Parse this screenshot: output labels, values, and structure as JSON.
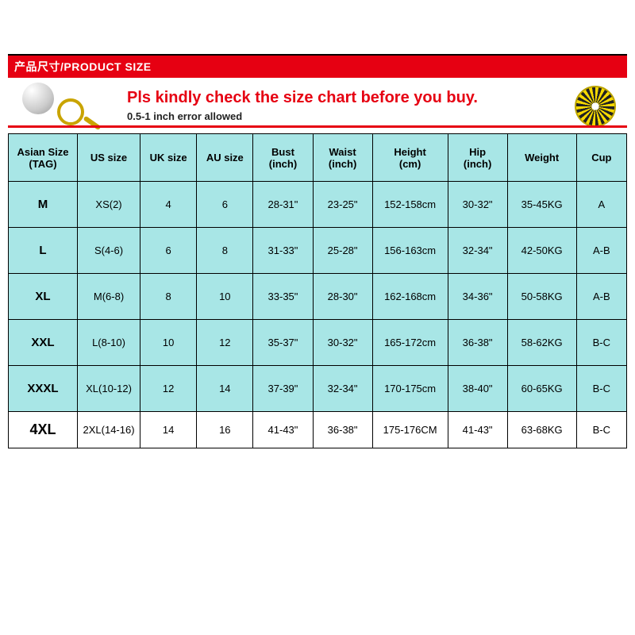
{
  "titlebar": "产品尺寸/PRODUCT SIZE",
  "notice": {
    "main": "Pls kindly check the size chart before you buy.",
    "sub": "0.5-1 inch error allowed"
  },
  "colors": {
    "header_bg": "#e60012",
    "table_cyan": "#a8e6e6",
    "table_white": "#ffffff",
    "border": "#000000",
    "notice_red": "#e60012",
    "tape_yellow": "#f6d800"
  },
  "table": {
    "headers": [
      {
        "line1": "Asian Size",
        "line2": "(TAG)"
      },
      {
        "line1": "US size",
        "line2": ""
      },
      {
        "line1": "UK size",
        "line2": ""
      },
      {
        "line1": "AU size",
        "line2": ""
      },
      {
        "line1": "Bust",
        "line2": "(inch)"
      },
      {
        "line1": "Waist",
        "line2": "(inch)"
      },
      {
        "line1": "Height",
        "line2": "(cm)"
      },
      {
        "line1": "Hip",
        "line2": "(inch)"
      },
      {
        "line1": "Weight",
        "line2": ""
      },
      {
        "line1": "Cup",
        "line2": ""
      }
    ],
    "rows": [
      {
        "style": "cyan",
        "cells": [
          "M",
          "XS(2)",
          "4",
          "6",
          "28-31\"",
          "23-25\"",
          "152-158cm",
          "30-32\"",
          "35-45KG",
          "A"
        ]
      },
      {
        "style": "cyan",
        "cells": [
          "L",
          "S(4-6)",
          "6",
          "8",
          "31-33\"",
          "25-28\"",
          "156-163cm",
          "32-34\"",
          "42-50KG",
          "A-B"
        ]
      },
      {
        "style": "cyan",
        "cells": [
          "XL",
          "M(6-8)",
          "8",
          "10",
          "33-35\"",
          "28-30\"",
          "162-168cm",
          "34-36\"",
          "50-58KG",
          "A-B"
        ]
      },
      {
        "style": "cyan",
        "cells": [
          "XXL",
          "L(8-10)",
          "10",
          "12",
          "35-37\"",
          "30-32\"",
          "165-172cm",
          "36-38\"",
          "58-62KG",
          "B-C"
        ]
      },
      {
        "style": "cyan",
        "cells": [
          "XXXL",
          "XL(10-12)",
          "12",
          "14",
          "37-39\"",
          "32-34\"",
          "170-175cm",
          "38-40\"",
          "60-65KG",
          "B-C"
        ]
      },
      {
        "style": "white",
        "cells": [
          "4XL",
          "2XL(14-16)",
          "14",
          "16",
          "41-43\"",
          "36-38\"",
          "175-176CM",
          "41-43\"",
          "63-68KG",
          "B-C"
        ]
      }
    ]
  }
}
